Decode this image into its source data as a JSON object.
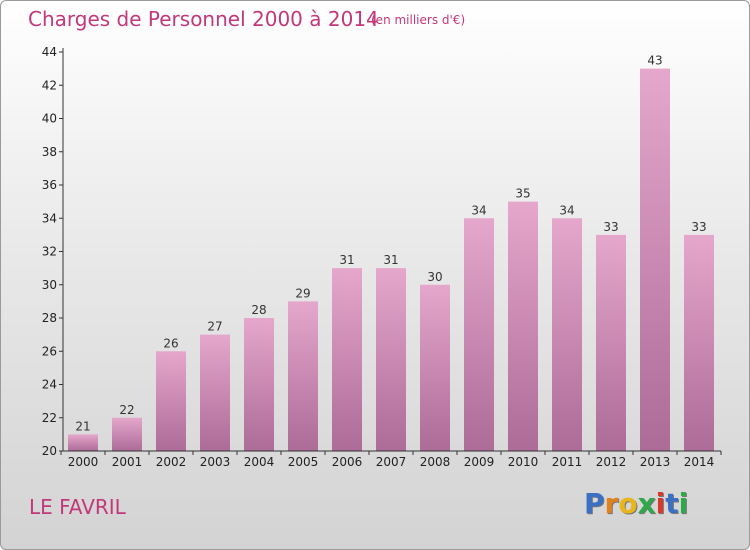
{
  "header": {
    "title": "Charges de Personnel 2000 à 2014",
    "subtitle": "(en milliers d'€)"
  },
  "footer": {
    "commune": "LE FAVRIL",
    "logo_letters": [
      "P",
      "r",
      "o",
      "x",
      "i",
      "t",
      "i"
    ]
  },
  "colors": {
    "accent": "#c2387a",
    "bar_top": "#e5a7cb",
    "bar_bottom": "#ad6b98",
    "logo": [
      "#3a6fc4",
      "#e0821e",
      "#e8b51c",
      "#2fa84a",
      "#d8392b",
      "#3a6fc4",
      "#2fa84a"
    ]
  },
  "chart_data": {
    "type": "bar",
    "title": "Charges de Personnel 2000 à 2014",
    "subtitle": "(en milliers d'€)",
    "categories": [
      "2000",
      "2001",
      "2002",
      "2003",
      "2004",
      "2005",
      "2006",
      "2007",
      "2008",
      "2009",
      "2010",
      "2011",
      "2012",
      "2013",
      "2014"
    ],
    "values": [
      21,
      22,
      26,
      27,
      28,
      29,
      31,
      31,
      30,
      34,
      35,
      34,
      33,
      43,
      33
    ],
    "xlabel": "",
    "ylabel": "",
    "ylim": [
      20,
      44
    ],
    "yticks": [
      20,
      22,
      24,
      26,
      28,
      30,
      32,
      34,
      36,
      38,
      40,
      42,
      44
    ],
    "grid": false,
    "data_labels": true
  }
}
